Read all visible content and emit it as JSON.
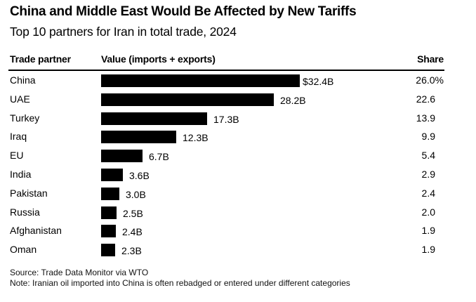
{
  "chart_data": {
    "type": "bar",
    "orientation": "horizontal",
    "title": "China and Middle East Would Be Affected by New Tariffs",
    "subtitle": "Top 10 partners for Iran in total trade, 2024",
    "columns": {
      "partner": "Trade partner",
      "value": "Value (imports + exports)",
      "share": "Share"
    },
    "categories": [
      "China",
      "UAE",
      "Turkey",
      "Iraq",
      "EU",
      "India",
      "Pakistan",
      "Russia",
      "Afghanistan",
      "Oman"
    ],
    "values": [
      32.4,
      28.2,
      17.3,
      12.3,
      6.7,
      3.6,
      3.0,
      2.5,
      2.4,
      2.3
    ],
    "value_labels": [
      "$32.4B",
      "28.2B",
      "17.3B",
      "12.3B",
      "6.7B",
      "3.6B",
      "3.0B",
      "2.5B",
      "2.4B",
      "2.3B"
    ],
    "value_unit": "billion USD",
    "shares": [
      26.0,
      22.6,
      13.9,
      9.9,
      5.4,
      2.9,
      2.4,
      2.0,
      1.9,
      1.9
    ],
    "share_labels": [
      "26.0%",
      "22.6",
      "13.9",
      "9.9",
      "5.4",
      "2.9",
      "2.4",
      "2.0",
      "1.9",
      "1.9"
    ],
    "bar_color": "#000000",
    "xlim": [
      0,
      32.4
    ],
    "grid": false,
    "source": "Source: Trade Data Monitor via WTO",
    "note": "Note: Iranian oil imported into China is often rebadged or entered under different categories"
  }
}
